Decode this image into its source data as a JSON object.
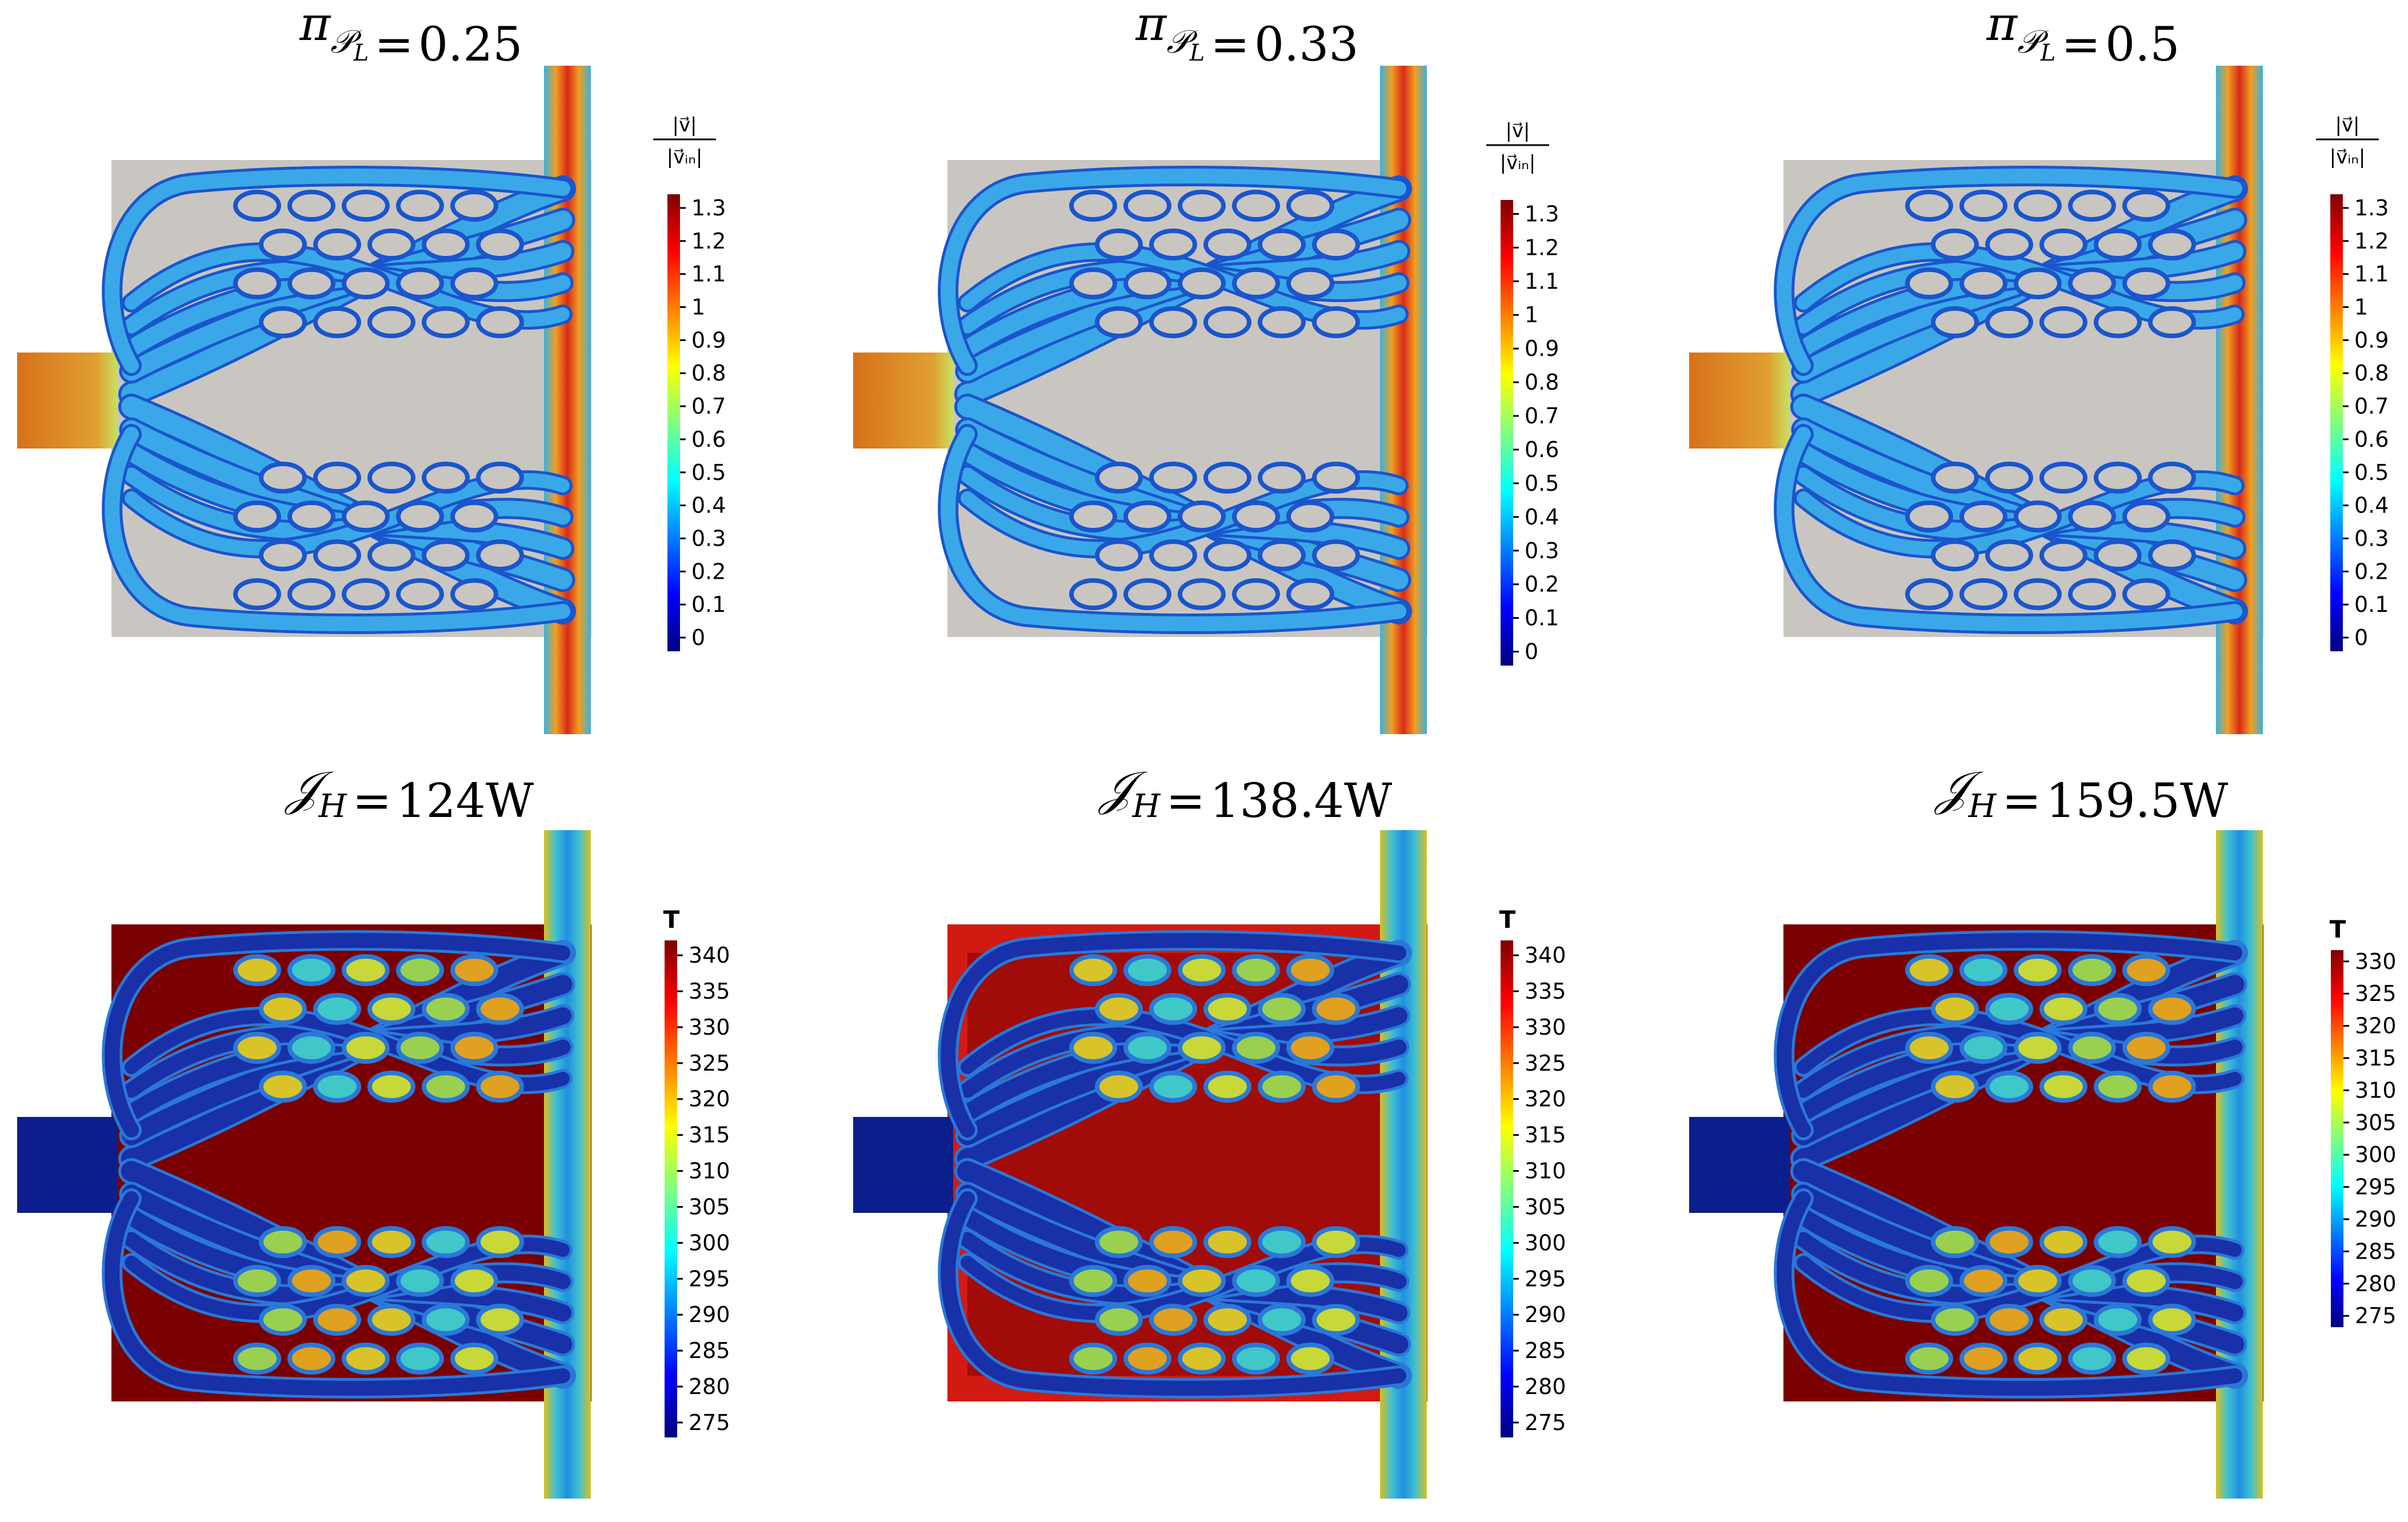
{
  "panels": [
    {
      "row": "velocity",
      "title": {
        "pre": "π",
        "sub": "𝒫",
        "subsub": "L",
        "op": "=",
        "value": "0.25"
      },
      "colorbar": {
        "kind": "velocity",
        "label_num": "|v⃗|",
        "label_den": "|v⃗ᵢₙ|",
        "ticks": [
          "1.3",
          "1.2",
          "1.1",
          "1",
          "0.9",
          "0.8",
          "0.7",
          "0.6",
          "0.5",
          "0.4",
          "0.3",
          "0.2",
          "0.1",
          "0"
        ]
      }
    },
    {
      "row": "velocity",
      "title": {
        "pre": "π",
        "sub": "𝒫",
        "subsub": "L",
        "op": "=",
        "value": "0.33"
      },
      "colorbar": {
        "kind": "velocity",
        "label_num": "|v⃗|",
        "label_den": "|v⃗ᵢₙ|",
        "ticks": [
          "1.3",
          "1.2",
          "1.1",
          "1",
          "0.9",
          "0.8",
          "0.7",
          "0.6",
          "0.5",
          "0.4",
          "0.3",
          "0.2",
          "0.1",
          "0"
        ]
      }
    },
    {
      "row": "velocity",
      "title": {
        "pre": "π",
        "sub": "𝒫",
        "subsub": "L",
        "op": "=",
        "value": "0.5"
      },
      "colorbar": {
        "kind": "velocity",
        "label_num": "|v⃗|",
        "label_den": "|v⃗ᵢₙ|",
        "ticks": [
          "1.3",
          "1.2",
          "1.1",
          "1",
          "0.9",
          "0.8",
          "0.7",
          "0.6",
          "0.5",
          "0.4",
          "0.3",
          "0.2",
          "0.1",
          "0"
        ]
      }
    },
    {
      "row": "temperature",
      "title": {
        "pre": "𝒥",
        "sub": "H",
        "subsub": "",
        "op": "=",
        "value": "124W"
      },
      "colorbar": {
        "kind": "temperature",
        "label": "T",
        "ticks": [
          "340",
          "335",
          "330",
          "325",
          "320",
          "315",
          "310",
          "305",
          "300",
          "295",
          "290",
          "285",
          "280",
          "275"
        ]
      }
    },
    {
      "row": "temperature",
      "title": {
        "pre": "𝒥",
        "sub": "H",
        "subsub": "",
        "op": "=",
        "value": "138.4W"
      },
      "colorbar": {
        "kind": "temperature",
        "label": "T",
        "ticks": [
          "340",
          "335",
          "330",
          "325",
          "320",
          "315",
          "310",
          "305",
          "300",
          "295",
          "290",
          "285",
          "280",
          "275"
        ]
      }
    },
    {
      "row": "temperature",
      "title": {
        "pre": "𝒥",
        "sub": "H",
        "subsub": "",
        "op": "=",
        "value": "159.5W"
      },
      "colorbar": {
        "kind": "temperature",
        "label": "T",
        "ticks": [
          "330",
          "325",
          "320",
          "315",
          "310",
          "305",
          "300",
          "295",
          "290",
          "285",
          "280",
          "275"
        ]
      }
    }
  ],
  "colors": {
    "solid_velocity": "#c9c6c1",
    "inlet_velocity": "#d8701a",
    "outlet_velocity": "#d93a22",
    "channel_velocity": "#2f86d9",
    "solid_temperature": "#7a0000",
    "solid_temperature_hot": "#d11a12",
    "inlet_temperature": "#0a1f8c",
    "outlet_temperature": "#1fa0e0",
    "jet_stops": [
      "#00007f",
      "#0000ff",
      "#007fff",
      "#00ffff",
      "#7fff7f",
      "#ffff00",
      "#ff7f00",
      "#ff0000",
      "#7f0000"
    ]
  }
}
